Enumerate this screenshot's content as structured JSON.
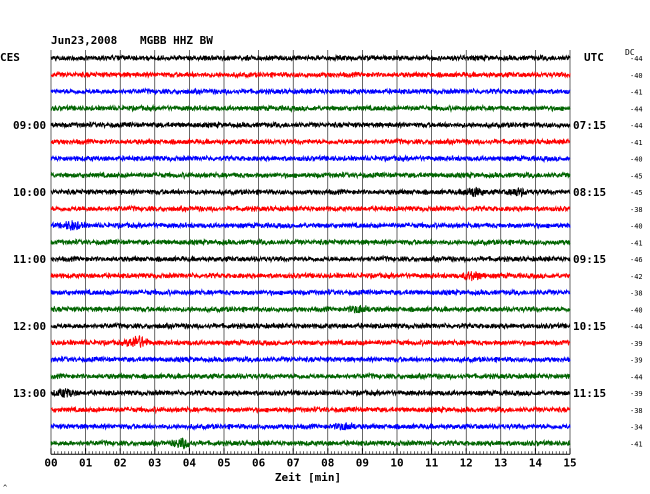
{
  "header": {
    "date": "Jun23,2008",
    "station": "MGBB HHZ BW",
    "left_zone": "CES",
    "right_zone": "UTC",
    "dc_label": "DC"
  },
  "footer": {
    "xlabel": "Zeit [min]",
    "corner_mark": "^"
  },
  "colors": {
    "trace_cycle": [
      "#000000",
      "#ff0000",
      "#0000ff",
      "#006400"
    ],
    "grid": "#000000",
    "background": "#ffffff"
  },
  "chart_data": {
    "type": "line",
    "title": "Jun23,2008  MGBB HHZ BW",
    "xlabel": "Zeit [min]",
    "x_ticks": [
      "00",
      "01",
      "02",
      "03",
      "04",
      "05",
      "06",
      "07",
      "08",
      "09",
      "10",
      "11",
      "12",
      "13",
      "14",
      "15"
    ],
    "xlim": [
      0,
      15
    ],
    "left_time_labels": [
      {
        "row": 4,
        "label": "09:00"
      },
      {
        "row": 8,
        "label": "10:00"
      },
      {
        "row": 12,
        "label": "11:00"
      },
      {
        "row": 16,
        "label": "12:00"
      },
      {
        "row": 20,
        "label": "13:00"
      }
    ],
    "right_time_labels": [
      {
        "row": 4,
        "label": "07:15"
      },
      {
        "row": 8,
        "label": "08:15"
      },
      {
        "row": 12,
        "label": "09:15"
      },
      {
        "row": 16,
        "label": "10:15"
      },
      {
        "row": 20,
        "label": "11:15"
      }
    ],
    "dc_offsets": [
      -44,
      -40,
      -41,
      -44,
      -44,
      -41,
      -40,
      -45,
      -45,
      -38,
      -40,
      -41,
      -46,
      -42,
      -38,
      -40,
      -44,
      -39,
      -39,
      -44,
      -39,
      -38,
      -34,
      -41
    ],
    "events": [
      {
        "row": 8,
        "minute": 12.2,
        "amplitude": 1.6
      },
      {
        "row": 8,
        "minute": 13.5,
        "amplitude": 1.2
      },
      {
        "row": 10,
        "minute": 0.6,
        "amplitude": 1.6
      },
      {
        "row": 13,
        "minute": 12.2,
        "amplitude": 1.5
      },
      {
        "row": 15,
        "minute": 8.9,
        "amplitude": 1.3
      },
      {
        "row": 17,
        "minute": 2.5,
        "amplitude": 2.6
      },
      {
        "row": 20,
        "minute": 0.4,
        "amplitude": 1.5
      },
      {
        "row": 22,
        "minute": 8.5,
        "amplitude": 1.2
      },
      {
        "row": 23,
        "minute": 3.8,
        "amplitude": 1.8
      }
    ]
  }
}
